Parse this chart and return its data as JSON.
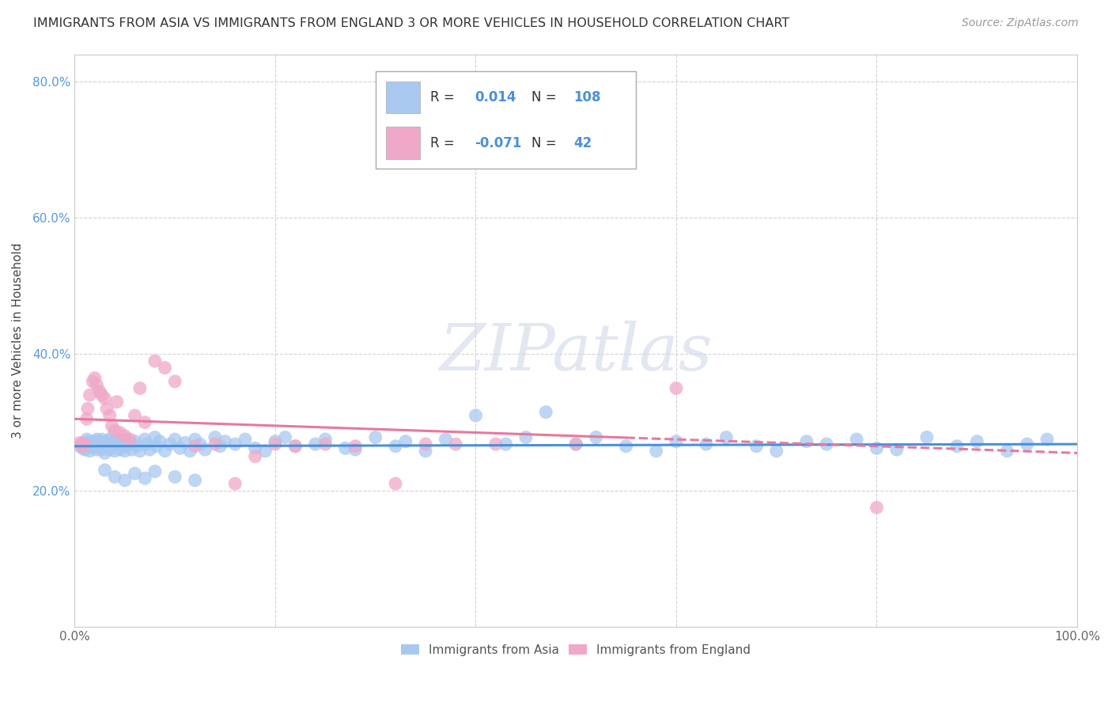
{
  "title": "IMMIGRANTS FROM ASIA VS IMMIGRANTS FROM ENGLAND 3 OR MORE VEHICLES IN HOUSEHOLD CORRELATION CHART",
  "source": "Source: ZipAtlas.com",
  "ylabel": "3 or more Vehicles in Household",
  "xlim": [
    0.0,
    1.0
  ],
  "ylim": [
    0.0,
    0.84
  ],
  "x_ticks": [
    0.0,
    0.2,
    0.4,
    0.6,
    0.8,
    1.0
  ],
  "x_tick_labels": [
    "0.0%",
    "",
    "",
    "",
    "",
    "100.0%"
  ],
  "y_ticks": [
    0.0,
    0.2,
    0.4,
    0.6,
    0.8
  ],
  "y_tick_labels": [
    "",
    "20.0%",
    "40.0%",
    "60.0%",
    "80.0%"
  ],
  "blue_r_val": "0.014",
  "blue_n_val": "108",
  "pink_r_val": "-0.071",
  "pink_n_val": "42",
  "blue_color": "#a8c8f0",
  "pink_color": "#f0a8c8",
  "blue_line_color": "#4a90d9",
  "pink_line_color": "#e8789e",
  "stat_color": "#4a90d9",
  "watermark": "ZIPatlas",
  "legend_label_blue": "Immigrants from Asia",
  "legend_label_pink": "Immigrants from England",
  "blue_line_start_y": 0.265,
  "blue_line_end_y": 0.268,
  "pink_line_start_y": 0.305,
  "pink_line_end_y": 0.255,
  "blue_scatter_x": [
    0.005,
    0.007,
    0.008,
    0.01,
    0.01,
    0.012,
    0.013,
    0.015,
    0.015,
    0.015,
    0.018,
    0.02,
    0.02,
    0.022,
    0.022,
    0.023,
    0.025,
    0.025,
    0.027,
    0.027,
    0.028,
    0.03,
    0.03,
    0.032,
    0.033,
    0.035,
    0.037,
    0.038,
    0.04,
    0.04,
    0.042,
    0.043,
    0.045,
    0.047,
    0.05,
    0.05,
    0.052,
    0.055,
    0.057,
    0.06,
    0.062,
    0.065,
    0.07,
    0.072,
    0.075,
    0.08,
    0.082,
    0.085,
    0.09,
    0.095,
    0.1,
    0.105,
    0.11,
    0.115,
    0.12,
    0.125,
    0.13,
    0.14,
    0.145,
    0.15,
    0.16,
    0.17,
    0.18,
    0.19,
    0.2,
    0.21,
    0.22,
    0.24,
    0.25,
    0.27,
    0.28,
    0.3,
    0.32,
    0.33,
    0.35,
    0.37,
    0.4,
    0.43,
    0.45,
    0.47,
    0.5,
    0.52,
    0.55,
    0.58,
    0.6,
    0.63,
    0.65,
    0.68,
    0.7,
    0.73,
    0.75,
    0.78,
    0.8,
    0.82,
    0.85,
    0.88,
    0.9,
    0.93,
    0.95,
    0.97,
    0.03,
    0.04,
    0.05,
    0.06,
    0.07,
    0.08,
    0.1,
    0.12
  ],
  "blue_scatter_y": [
    0.265,
    0.268,
    0.262,
    0.27,
    0.26,
    0.275,
    0.268,
    0.272,
    0.258,
    0.265,
    0.263,
    0.268,
    0.272,
    0.26,
    0.275,
    0.265,
    0.268,
    0.272,
    0.26,
    0.275,
    0.265,
    0.27,
    0.255,
    0.268,
    0.273,
    0.26,
    0.278,
    0.265,
    0.272,
    0.258,
    0.268,
    0.275,
    0.26,
    0.272,
    0.265,
    0.258,
    0.275,
    0.27,
    0.26,
    0.272,
    0.265,
    0.258,
    0.275,
    0.268,
    0.26,
    0.278,
    0.265,
    0.272,
    0.258,
    0.268,
    0.275,
    0.262,
    0.27,
    0.258,
    0.275,
    0.268,
    0.26,
    0.278,
    0.265,
    0.272,
    0.268,
    0.275,
    0.262,
    0.258,
    0.272,
    0.278,
    0.265,
    0.268,
    0.275,
    0.262,
    0.26,
    0.278,
    0.265,
    0.272,
    0.258,
    0.275,
    0.31,
    0.268,
    0.278,
    0.315,
    0.268,
    0.278,
    0.265,
    0.258,
    0.272,
    0.268,
    0.278,
    0.265,
    0.258,
    0.272,
    0.268,
    0.275,
    0.262,
    0.26,
    0.278,
    0.265,
    0.272,
    0.258,
    0.268,
    0.275,
    0.23,
    0.22,
    0.215,
    0.225,
    0.218,
    0.228,
    0.22,
    0.215
  ],
  "pink_scatter_x": [
    0.005,
    0.007,
    0.008,
    0.01,
    0.012,
    0.013,
    0.015,
    0.018,
    0.02,
    0.022,
    0.025,
    0.027,
    0.03,
    0.032,
    0.035,
    0.037,
    0.04,
    0.042,
    0.045,
    0.05,
    0.055,
    0.06,
    0.065,
    0.07,
    0.08,
    0.09,
    0.1,
    0.12,
    0.14,
    0.16,
    0.18,
    0.2,
    0.22,
    0.25,
    0.28,
    0.32,
    0.35,
    0.38,
    0.42,
    0.5,
    0.6,
    0.8
  ],
  "pink_scatter_y": [
    0.27,
    0.268,
    0.265,
    0.268,
    0.305,
    0.32,
    0.34,
    0.36,
    0.365,
    0.355,
    0.345,
    0.34,
    0.335,
    0.32,
    0.31,
    0.295,
    0.288,
    0.33,
    0.285,
    0.28,
    0.275,
    0.31,
    0.35,
    0.3,
    0.39,
    0.38,
    0.36,
    0.265,
    0.268,
    0.21,
    0.25,
    0.268,
    0.265,
    0.268,
    0.265,
    0.21,
    0.268,
    0.268,
    0.268,
    0.268,
    0.35,
    0.175
  ]
}
